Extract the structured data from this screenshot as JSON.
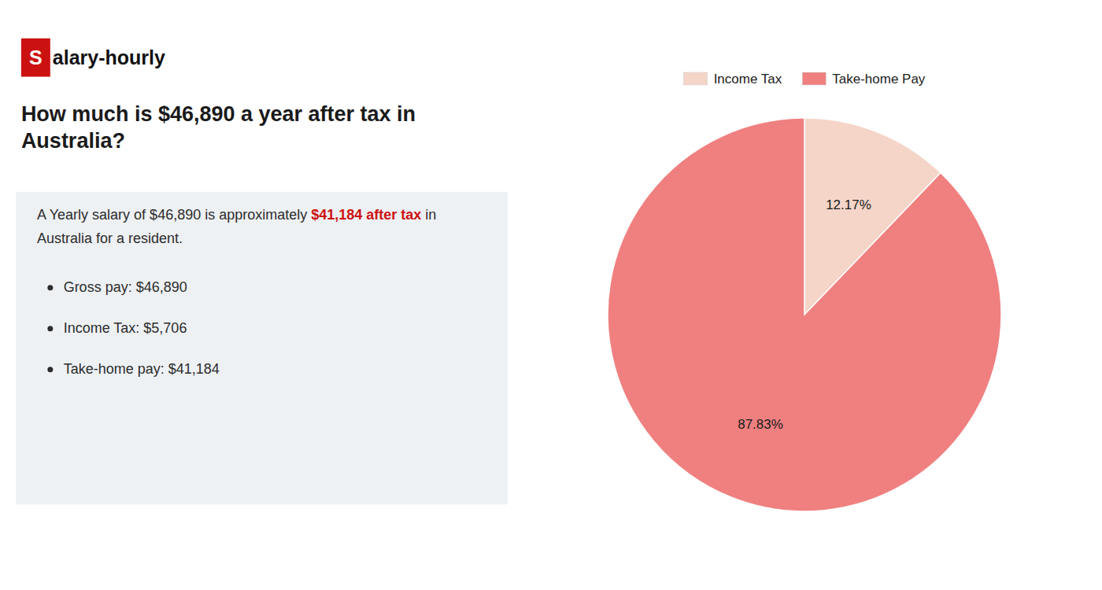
{
  "chart_data": {
    "type": "pie",
    "title": "How much is $46,890 a year after tax in Australia?",
    "annotations": [
      {
        "text": "S",
        "color": "#cc1111"
      },
      {
        "text": "alary-hourly"
      },
      {
        "text": "A Yearly salary of $46,890 is approximately "
      },
      {
        "text": "$41,184 after tax",
        "color": "#cc1111"
      },
      {
        "text": " in"
      },
      {
        "text": "Australia for a resident."
      },
      {
        "text": "Gross pay: $46,890"
      },
      {
        "text": "Income Tax: $5,706"
      },
      {
        "text": "Take-home pay: $41,184"
      }
    ],
    "categories": [
      "Income Tax",
      "Take-home Pay"
    ],
    "values": [
      12.17,
      87.83
    ],
    "value_labels": [
      "12.17%",
      "87.83%"
    ],
    "colors": [
      "#f5d5c8",
      "#f08080"
    ],
    "data_labels": true,
    "legend": "top"
  }
}
